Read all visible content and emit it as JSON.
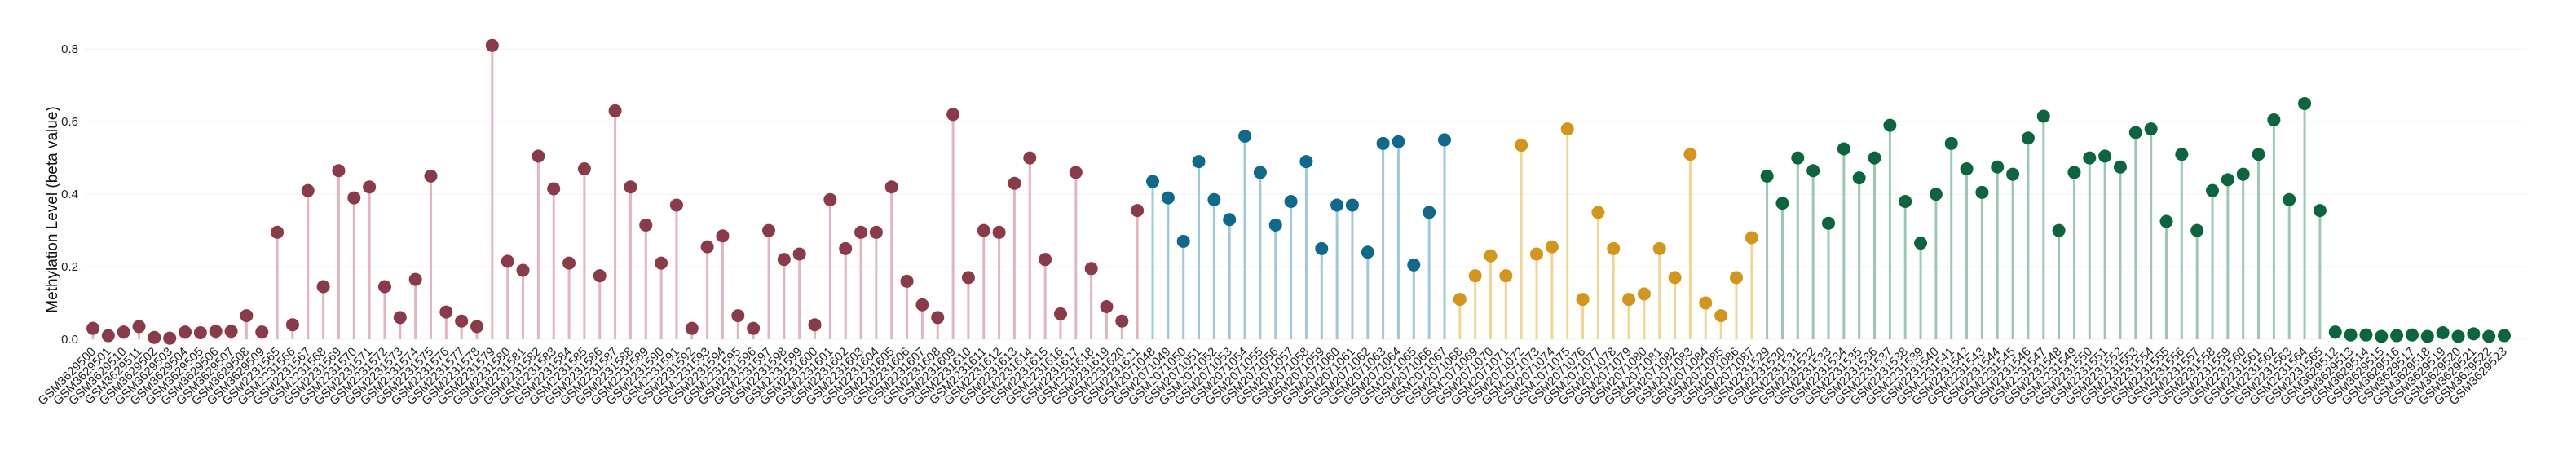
{
  "chart_data": {
    "type": "lollipop",
    "title": "",
    "xlabel": "",
    "ylabel": "Methylation Level (beta value)",
    "ylim": [
      0,
      0.85
    ],
    "y_ticks": [
      "0.0",
      "0.2",
      "0.4",
      "0.6",
      "0.8"
    ],
    "grid": true,
    "legend": "none",
    "group_colors": {
      "g1": {
        "point": "#8B3A4A",
        "stem": "#E4B5C0"
      },
      "g2": {
        "point": "#0E6A8C",
        "stem": "#9FC8DA"
      },
      "g3": {
        "point": "#D4961A",
        "stem": "#F1D595"
      },
      "g4": {
        "point": "#0B6640",
        "stem": "#9CC8B2"
      },
      "g5": {
        "point": "#0B6640",
        "stem": "#9CC8B2"
      }
    },
    "samples": [
      {
        "name": "GSM3629500",
        "value": 0.03,
        "group": "g1"
      },
      {
        "name": "GSM3629501",
        "value": 0.01,
        "group": "g1"
      },
      {
        "name": "GSM3629510",
        "value": 0.02,
        "group": "g1"
      },
      {
        "name": "GSM3629511",
        "value": 0.035,
        "group": "g1"
      },
      {
        "name": "GSM3629502",
        "value": 0.005,
        "group": "g1"
      },
      {
        "name": "GSM3629503",
        "value": 0.003,
        "group": "g1"
      },
      {
        "name": "GSM3629504",
        "value": 0.02,
        "group": "g1"
      },
      {
        "name": "GSM3629505",
        "value": 0.018,
        "group": "g1"
      },
      {
        "name": "GSM3629506",
        "value": 0.022,
        "group": "g1"
      },
      {
        "name": "GSM3629507",
        "value": 0.022,
        "group": "g1"
      },
      {
        "name": "GSM3629508",
        "value": 0.065,
        "group": "g1"
      },
      {
        "name": "GSM3629509",
        "value": 0.02,
        "group": "g1"
      },
      {
        "name": "GSM2231565",
        "value": 0.295,
        "group": "g1"
      },
      {
        "name": "GSM2231566",
        "value": 0.04,
        "group": "g1"
      },
      {
        "name": "GSM2231567",
        "value": 0.41,
        "group": "g1"
      },
      {
        "name": "GSM2231568",
        "value": 0.145,
        "group": "g1"
      },
      {
        "name": "GSM2231569",
        "value": 0.465,
        "group": "g1"
      },
      {
        "name": "GSM2231570",
        "value": 0.39,
        "group": "g1"
      },
      {
        "name": "GSM2231571",
        "value": 0.42,
        "group": "g1"
      },
      {
        "name": "GSM2231572",
        "value": 0.145,
        "group": "g1"
      },
      {
        "name": "GSM2231573",
        "value": 0.06,
        "group": "g1"
      },
      {
        "name": "GSM2231574",
        "value": 0.165,
        "group": "g1"
      },
      {
        "name": "GSM2231575",
        "value": 0.45,
        "group": "g1"
      },
      {
        "name": "GSM2231576",
        "value": 0.075,
        "group": "g1"
      },
      {
        "name": "GSM2231577",
        "value": 0.05,
        "group": "g1"
      },
      {
        "name": "GSM2231578",
        "value": 0.035,
        "group": "g1"
      },
      {
        "name": "GSM2231579",
        "value": 0.81,
        "group": "g1"
      },
      {
        "name": "GSM2231580",
        "value": 0.215,
        "group": "g1"
      },
      {
        "name": "GSM2231581",
        "value": 0.19,
        "group": "g1"
      },
      {
        "name": "GSM2231582",
        "value": 0.505,
        "group": "g1"
      },
      {
        "name": "GSM2231583",
        "value": 0.415,
        "group": "g1"
      },
      {
        "name": "GSM2231584",
        "value": 0.21,
        "group": "g1"
      },
      {
        "name": "GSM2231585",
        "value": 0.47,
        "group": "g1"
      },
      {
        "name": "GSM2231586",
        "value": 0.175,
        "group": "g1"
      },
      {
        "name": "GSM2231587",
        "value": 0.63,
        "group": "g1"
      },
      {
        "name": "GSM2231588",
        "value": 0.42,
        "group": "g1"
      },
      {
        "name": "GSM2231589",
        "value": 0.315,
        "group": "g1"
      },
      {
        "name": "GSM2231590",
        "value": 0.21,
        "group": "g1"
      },
      {
        "name": "GSM2231591",
        "value": 0.37,
        "group": "g1"
      },
      {
        "name": "GSM2231592",
        "value": 0.03,
        "group": "g1"
      },
      {
        "name": "GSM2231593",
        "value": 0.255,
        "group": "g1"
      },
      {
        "name": "GSM2231594",
        "value": 0.285,
        "group": "g1"
      },
      {
        "name": "GSM2231595",
        "value": 0.065,
        "group": "g1"
      },
      {
        "name": "GSM2231596",
        "value": 0.03,
        "group": "g1"
      },
      {
        "name": "GSM2231597",
        "value": 0.3,
        "group": "g1"
      },
      {
        "name": "GSM2231598",
        "value": 0.22,
        "group": "g1"
      },
      {
        "name": "GSM2231599",
        "value": 0.235,
        "group": "g1"
      },
      {
        "name": "GSM2231600",
        "value": 0.04,
        "group": "g1"
      },
      {
        "name": "GSM2231601",
        "value": 0.385,
        "group": "g1"
      },
      {
        "name": "GSM2231602",
        "value": 0.25,
        "group": "g1"
      },
      {
        "name": "GSM2231603",
        "value": 0.295,
        "group": "g1"
      },
      {
        "name": "GSM2231604",
        "value": 0.295,
        "group": "g1"
      },
      {
        "name": "GSM2231605",
        "value": 0.42,
        "group": "g1"
      },
      {
        "name": "GSM2231606",
        "value": 0.16,
        "group": "g1"
      },
      {
        "name": "GSM2231607",
        "value": 0.095,
        "group": "g1"
      },
      {
        "name": "GSM2231608",
        "value": 0.06,
        "group": "g1"
      },
      {
        "name": "GSM2231609",
        "value": 0.62,
        "group": "g1"
      },
      {
        "name": "GSM2231610",
        "value": 0.17,
        "group": "g1"
      },
      {
        "name": "GSM2231611",
        "value": 0.3,
        "group": "g1"
      },
      {
        "name": "GSM2231612",
        "value": 0.295,
        "group": "g1"
      },
      {
        "name": "GSM2231613",
        "value": 0.43,
        "group": "g1"
      },
      {
        "name": "GSM2231614",
        "value": 0.5,
        "group": "g1"
      },
      {
        "name": "GSM2231615",
        "value": 0.22,
        "group": "g1"
      },
      {
        "name": "GSM2231616",
        "value": 0.07,
        "group": "g1"
      },
      {
        "name": "GSM2231617",
        "value": 0.46,
        "group": "g1"
      },
      {
        "name": "GSM2231618",
        "value": 0.195,
        "group": "g1"
      },
      {
        "name": "GSM2231619",
        "value": 0.09,
        "group": "g1"
      },
      {
        "name": "GSM2231620",
        "value": 0.05,
        "group": "g1"
      },
      {
        "name": "GSM2231621",
        "value": 0.355,
        "group": "g1"
      },
      {
        "name": "GSM2071048",
        "value": 0.435,
        "group": "g2"
      },
      {
        "name": "GSM2071049",
        "value": 0.39,
        "group": "g2"
      },
      {
        "name": "GSM2071050",
        "value": 0.27,
        "group": "g2"
      },
      {
        "name": "GSM2071051",
        "value": 0.49,
        "group": "g2"
      },
      {
        "name": "GSM2071052",
        "value": 0.385,
        "group": "g2"
      },
      {
        "name": "GSM2071053",
        "value": 0.33,
        "group": "g2"
      },
      {
        "name": "GSM2071054",
        "value": 0.56,
        "group": "g2"
      },
      {
        "name": "GSM2071055",
        "value": 0.46,
        "group": "g2"
      },
      {
        "name": "GSM2071056",
        "value": 0.315,
        "group": "g2"
      },
      {
        "name": "GSM2071057",
        "value": 0.38,
        "group": "g2"
      },
      {
        "name": "GSM2071058",
        "value": 0.49,
        "group": "g2"
      },
      {
        "name": "GSM2071059",
        "value": 0.25,
        "group": "g2"
      },
      {
        "name": "GSM2071060",
        "value": 0.37,
        "group": "g2"
      },
      {
        "name": "GSM2071061",
        "value": 0.37,
        "group": "g2"
      },
      {
        "name": "GSM2071062",
        "value": 0.24,
        "group": "g2"
      },
      {
        "name": "GSM2071063",
        "value": 0.54,
        "group": "g2"
      },
      {
        "name": "GSM2071064",
        "value": 0.545,
        "group": "g2"
      },
      {
        "name": "GSM2071065",
        "value": 0.205,
        "group": "g2"
      },
      {
        "name": "GSM2071066",
        "value": 0.35,
        "group": "g2"
      },
      {
        "name": "GSM2071067",
        "value": 0.55,
        "group": "g2"
      },
      {
        "name": "GSM2071068",
        "value": 0.11,
        "group": "g3"
      },
      {
        "name": "GSM2071069",
        "value": 0.175,
        "group": "g3"
      },
      {
        "name": "GSM2071070",
        "value": 0.23,
        "group": "g3"
      },
      {
        "name": "GSM2071071",
        "value": 0.175,
        "group": "g3"
      },
      {
        "name": "GSM2071072",
        "value": 0.535,
        "group": "g3"
      },
      {
        "name": "GSM2071073",
        "value": 0.235,
        "group": "g3"
      },
      {
        "name": "GSM2071074",
        "value": 0.255,
        "group": "g3"
      },
      {
        "name": "GSM2071075",
        "value": 0.58,
        "group": "g3"
      },
      {
        "name": "GSM2071076",
        "value": 0.11,
        "group": "g3"
      },
      {
        "name": "GSM2071077",
        "value": 0.35,
        "group": "g3"
      },
      {
        "name": "GSM2071078",
        "value": 0.25,
        "group": "g3"
      },
      {
        "name": "GSM2071079",
        "value": 0.11,
        "group": "g3"
      },
      {
        "name": "GSM2071080",
        "value": 0.125,
        "group": "g3"
      },
      {
        "name": "GSM2071081",
        "value": 0.25,
        "group": "g3"
      },
      {
        "name": "GSM2071082",
        "value": 0.17,
        "group": "g3"
      },
      {
        "name": "GSM2071083",
        "value": 0.51,
        "group": "g3"
      },
      {
        "name": "GSM2071084",
        "value": 0.1,
        "group": "g3"
      },
      {
        "name": "GSM2071085",
        "value": 0.065,
        "group": "g3"
      },
      {
        "name": "GSM2071086",
        "value": 0.17,
        "group": "g3"
      },
      {
        "name": "GSM2071087",
        "value": 0.28,
        "group": "g3"
      },
      {
        "name": "GSM2231529",
        "value": 0.45,
        "group": "g4"
      },
      {
        "name": "GSM2231530",
        "value": 0.375,
        "group": "g4"
      },
      {
        "name": "GSM2231531",
        "value": 0.5,
        "group": "g4"
      },
      {
        "name": "GSM2231532",
        "value": 0.465,
        "group": "g4"
      },
      {
        "name": "GSM2231533",
        "value": 0.32,
        "group": "g4"
      },
      {
        "name": "GSM2231534",
        "value": 0.525,
        "group": "g4"
      },
      {
        "name": "GSM2231535",
        "value": 0.445,
        "group": "g4"
      },
      {
        "name": "GSM2231536",
        "value": 0.5,
        "group": "g4"
      },
      {
        "name": "GSM2231537",
        "value": 0.59,
        "group": "g4"
      },
      {
        "name": "GSM2231538",
        "value": 0.38,
        "group": "g4"
      },
      {
        "name": "GSM2231539",
        "value": 0.265,
        "group": "g4"
      },
      {
        "name": "GSM2231540",
        "value": 0.4,
        "group": "g4"
      },
      {
        "name": "GSM2231541",
        "value": 0.54,
        "group": "g4"
      },
      {
        "name": "GSM2231542",
        "value": 0.47,
        "group": "g4"
      },
      {
        "name": "GSM2231543",
        "value": 0.405,
        "group": "g4"
      },
      {
        "name": "GSM2231544",
        "value": 0.475,
        "group": "g4"
      },
      {
        "name": "GSM2231545",
        "value": 0.455,
        "group": "g4"
      },
      {
        "name": "GSM2231546",
        "value": 0.555,
        "group": "g4"
      },
      {
        "name": "GSM2231547",
        "value": 0.615,
        "group": "g4"
      },
      {
        "name": "GSM2231548",
        "value": 0.3,
        "group": "g4"
      },
      {
        "name": "GSM2231549",
        "value": 0.46,
        "group": "g4"
      },
      {
        "name": "GSM2231550",
        "value": 0.5,
        "group": "g4"
      },
      {
        "name": "GSM2231551",
        "value": 0.505,
        "group": "g4"
      },
      {
        "name": "GSM2231552",
        "value": 0.475,
        "group": "g4"
      },
      {
        "name": "GSM2231553",
        "value": 0.57,
        "group": "g4"
      },
      {
        "name": "GSM2231554",
        "value": 0.58,
        "group": "g4"
      },
      {
        "name": "GSM2231555",
        "value": 0.325,
        "group": "g4"
      },
      {
        "name": "GSM2231556",
        "value": 0.51,
        "group": "g4"
      },
      {
        "name": "GSM2231557",
        "value": 0.3,
        "group": "g4"
      },
      {
        "name": "GSM2231558",
        "value": 0.41,
        "group": "g4"
      },
      {
        "name": "GSM2231559",
        "value": 0.44,
        "group": "g4"
      },
      {
        "name": "GSM2231560",
        "value": 0.455,
        "group": "g4"
      },
      {
        "name": "GSM2231561",
        "value": 0.51,
        "group": "g4"
      },
      {
        "name": "GSM2231562",
        "value": 0.605,
        "group": "g4"
      },
      {
        "name": "GSM2231563",
        "value": 0.385,
        "group": "g4"
      },
      {
        "name": "GSM2231564",
        "value": 0.65,
        "group": "g4"
      },
      {
        "name": "GSM2231565",
        "value": 0.355,
        "group": "g4"
      },
      {
        "name": "GSM3629512",
        "value": 0.02,
        "group": "g5"
      },
      {
        "name": "GSM3629513",
        "value": 0.012,
        "group": "g5"
      },
      {
        "name": "GSM3629514",
        "value": 0.012,
        "group": "g5"
      },
      {
        "name": "GSM3629515",
        "value": 0.008,
        "group": "g5"
      },
      {
        "name": "GSM3629516",
        "value": 0.01,
        "group": "g5"
      },
      {
        "name": "GSM3629517",
        "value": 0.012,
        "group": "g5"
      },
      {
        "name": "GSM3629518",
        "value": 0.008,
        "group": "g5"
      },
      {
        "name": "GSM3629519",
        "value": 0.018,
        "group": "g5"
      },
      {
        "name": "GSM3629520",
        "value": 0.008,
        "group": "g5"
      },
      {
        "name": "GSM3629521",
        "value": 0.015,
        "group": "g5"
      },
      {
        "name": "GSM3629522",
        "value": 0.008,
        "group": "g5"
      },
      {
        "name": "GSM3629523",
        "value": 0.01,
        "group": "g5"
      }
    ]
  }
}
